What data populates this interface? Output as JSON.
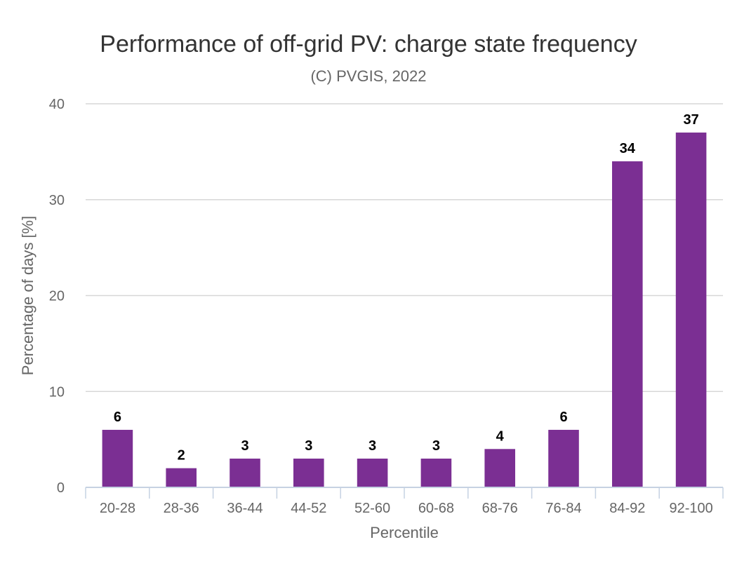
{
  "chart_data": {
    "type": "bar",
    "title": "Performance of off-grid PV: charge state frequency",
    "subtitle": "(C) PVGIS, 2022",
    "xlabel": "Percentile",
    "ylabel": "Percentage of days [%]",
    "categories": [
      "20-28",
      "28-36",
      "36-44",
      "44-52",
      "52-60",
      "60-68",
      "68-76",
      "76-84",
      "84-92",
      "92-100"
    ],
    "values": [
      6,
      2,
      3,
      3,
      3,
      3,
      4,
      6,
      34,
      37
    ],
    "data_labels": [
      "6",
      "2",
      "3",
      "3",
      "3",
      "3",
      "4",
      "6",
      "34",
      "37"
    ],
    "ylim": [
      0,
      40
    ],
    "yticks": [
      "0",
      "10",
      "20",
      "30",
      "40"
    ],
    "grid": true,
    "legend": "none",
    "bar_color": "#7b2f93"
  }
}
